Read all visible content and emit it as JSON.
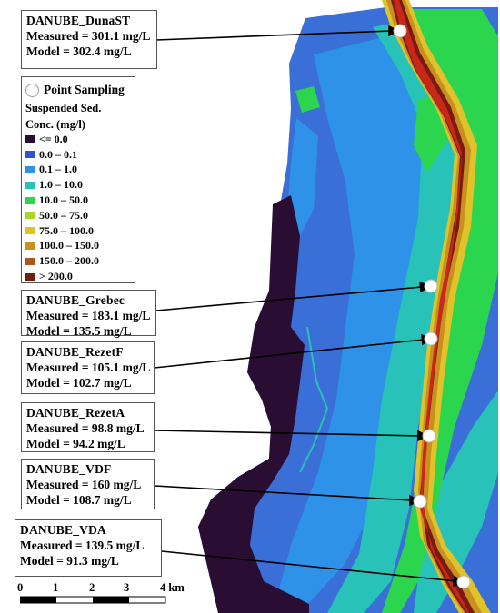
{
  "stations": [
    {
      "name": "DANUBE_DunaST",
      "measured": "Measured = 301.1 mg/L",
      "model": "Model = 302.4 mg/L"
    },
    {
      "name": "DANUBE_Grebec",
      "measured": "Measured = 183.1 mg/L",
      "model": "Model = 135.5  mg/L"
    },
    {
      "name": "DANUBE_RezetF",
      "measured": "Measured = 105.1 mg/L",
      "model": "Model = 102.7 mg/L"
    },
    {
      "name": "DANUBE_RezetA",
      "measured": "Measured = 98.8  mg/L",
      "model": "Model = 94.2 mg/L"
    },
    {
      "name": "DANUBE_VDF",
      "measured": "Measured = 160  mg/L",
      "model": "Model = 108.7 mg/L"
    },
    {
      "name": "DANUBE_VDA",
      "measured": "Measured = 139.5 mg/L",
      "model": "Model = 91.3  mg/L"
    }
  ],
  "legend": {
    "point_label": "Point Sampling",
    "title_line1": "Suspended Sed.",
    "title_line2": "Conc. (mg/l)",
    "classes": [
      {
        "label": "<= 0.0",
        "color": "#2a0d33"
      },
      {
        "label": "0.0 – 0.1",
        "color": "#3553c8"
      },
      {
        "label": "0.1 – 1.0",
        "color": "#2e93e8"
      },
      {
        "label": "1.0 – 10.0",
        "color": "#28c2b8"
      },
      {
        "label": "10.0 – 50.0",
        "color": "#2bd64e"
      },
      {
        "label": "50.0 – 75.0",
        "color": "#a8d62a"
      },
      {
        "label": "75.0 – 100.0",
        "color": "#e0c22a"
      },
      {
        "label": "100.0 – 150.0",
        "color": "#c8901e"
      },
      {
        "label": "150.0 – 200.0",
        "color": "#b0561a"
      },
      {
        "label": "> 200.0",
        "color": "#6e1e10"
      }
    ]
  },
  "scale": {
    "ticks": [
      "0",
      "1",
      "2",
      "3",
      "4 km"
    ]
  }
}
